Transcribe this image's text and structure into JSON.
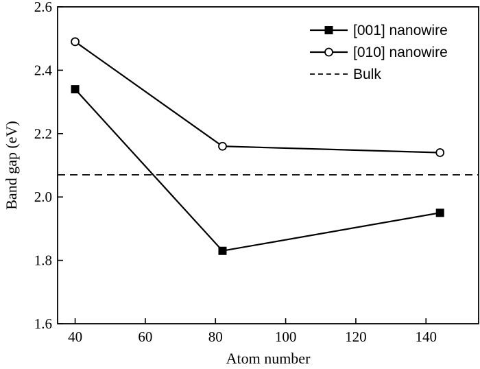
{
  "chart_data": {
    "type": "line",
    "title": "",
    "xlabel": "Atom number",
    "ylabel": "Band gap (eV)",
    "xlim": [
      35,
      155
    ],
    "ylim": [
      1.6,
      2.6
    ],
    "xticks": [
      40,
      60,
      80,
      100,
      120,
      140
    ],
    "yticks": [
      1.6,
      1.8,
      2.0,
      2.2,
      2.4,
      2.6
    ],
    "xtick_labels": [
      "40",
      "60",
      "80",
      "100",
      "120",
      "140"
    ],
    "ytick_labels": [
      "1.6",
      "1.8",
      "2.0",
      "2.2",
      "2.4",
      "2.6"
    ],
    "grid": false,
    "legend_position": "top-right",
    "series": [
      {
        "name": "[001] nanowire",
        "marker": "filled-square",
        "color": "#000000",
        "x": [
          40,
          82,
          144
        ],
        "y": [
          2.34,
          1.83,
          1.95
        ]
      },
      {
        "name": "[010] nanowire",
        "marker": "open-circle",
        "color": "#000000",
        "x": [
          40,
          82,
          144
        ],
        "y": [
          2.49,
          2.16,
          2.14
        ]
      }
    ],
    "reference_lines": [
      {
        "name": "Bulk",
        "orientation": "horizontal",
        "style": "dashed",
        "y": 2.07,
        "color": "#000000"
      }
    ]
  }
}
